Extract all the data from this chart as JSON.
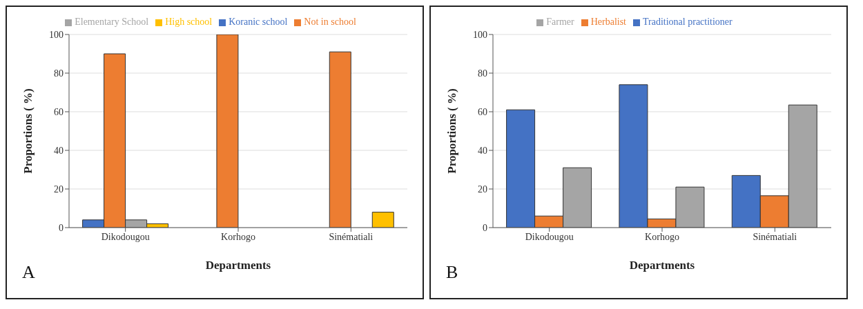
{
  "chart_data": [
    {
      "type": "bar",
      "categories": [
        "Dikodougou",
        "Korhogo",
        "Sinématiali"
      ],
      "xlabel": "Departments",
      "ylabel": "Proportions ( %)",
      "ylim": [
        0,
        100
      ],
      "yticks": [
        0,
        20,
        40,
        60,
        80,
        100
      ],
      "grid": "y",
      "legend": "top",
      "annotations": [
        "A"
      ],
      "series": [
        {
          "name": "Koranic school",
          "color": "#4472c4",
          "values": [
            4,
            0,
            0
          ]
        },
        {
          "name": "Not in school",
          "color": "#ed7d31",
          "values": [
            90,
            100,
            91
          ]
        },
        {
          "name": "Elementary School",
          "color": "#a5a5a5",
          "values": [
            4,
            0,
            0
          ]
        },
        {
          "name": "High school",
          "color": "#ffc000",
          "values": [
            2,
            0,
            8
          ]
        }
      ]
    },
    {
      "type": "bar",
      "categories": [
        "Dikodougou",
        "Korhogo",
        "Sinématiali"
      ],
      "xlabel": "Departments",
      "ylabel": "Proportions ( %)",
      "ylim": [
        0,
        100
      ],
      "yticks": [
        0,
        20,
        40,
        60,
        80,
        100
      ],
      "grid": "y",
      "legend": "top",
      "annotations": [
        "B"
      ],
      "series": [
        {
          "name": "Traditional practitioner",
          "color": "#4472c4",
          "values": [
            61,
            74,
            27
          ]
        },
        {
          "name": "Herbalist",
          "color": "#ed7d31",
          "values": [
            6,
            4.5,
            16.5
          ]
        },
        {
          "name": "Farmer",
          "color": "#a5a5a5",
          "values": [
            31,
            21,
            63.5
          ]
        }
      ]
    }
  ]
}
